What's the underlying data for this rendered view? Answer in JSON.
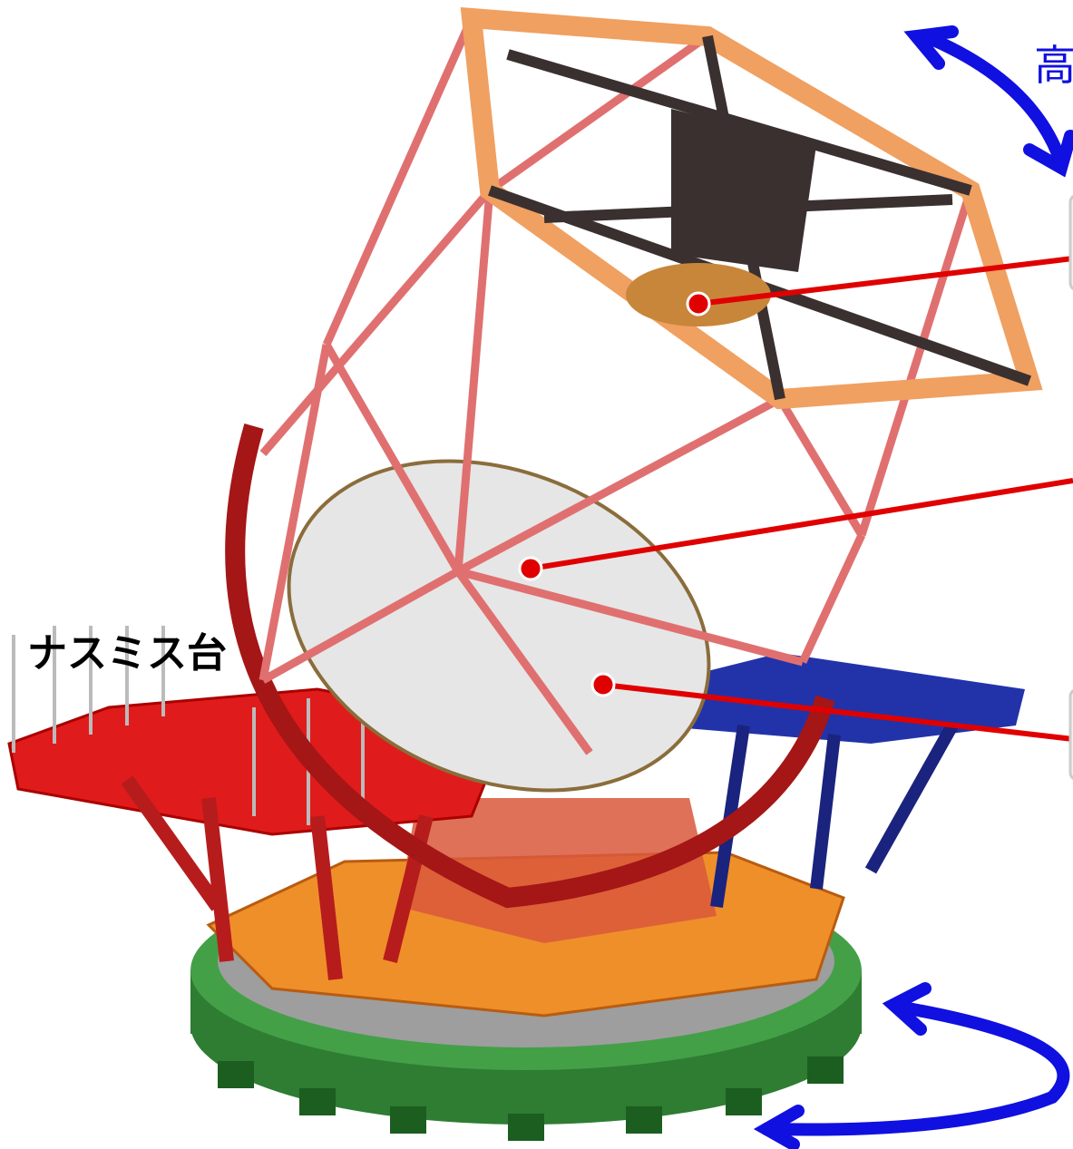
{
  "labels": {
    "nasmyth": "ナスミス台",
    "altitude_partial": "高"
  }
}
